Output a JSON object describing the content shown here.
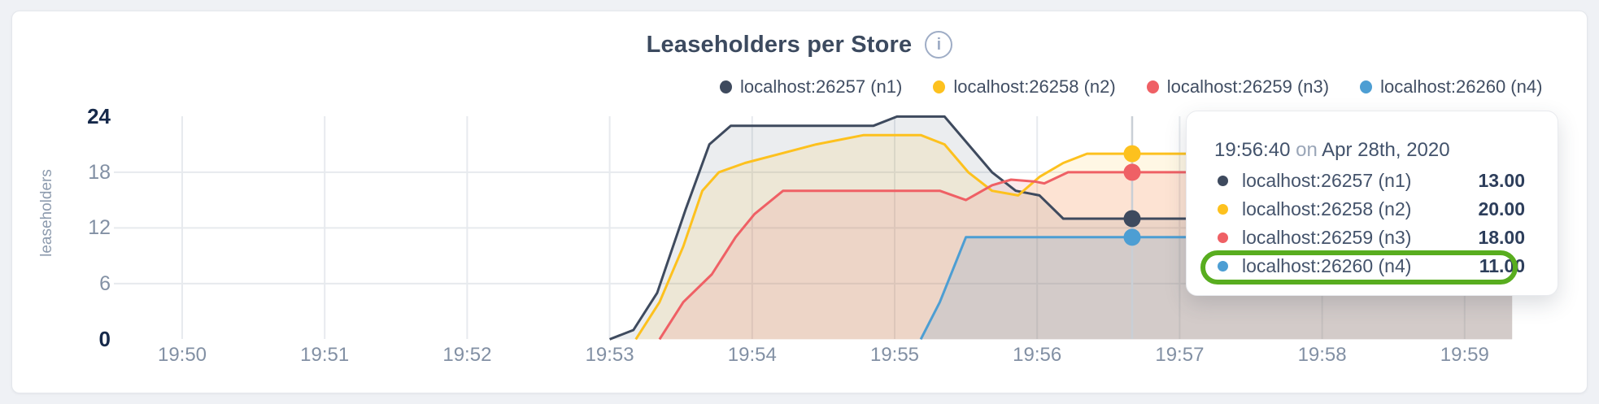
{
  "header": {
    "title": "Leaseholders per Store",
    "info_icon": "i"
  },
  "colors": {
    "n1": "#3e4a5e",
    "n2": "#fdc11e",
    "n3": "#ef6065",
    "n4": "#4d9ed3",
    "grid": "#e7eaee",
    "hover_line": "#c9cfd6",
    "highlight_green": "#58ad1f"
  },
  "legend": {
    "items": [
      {
        "label": "localhost:26257 (n1)",
        "color": "#3e4a5e"
      },
      {
        "label": "localhost:26258 (n2)",
        "color": "#fdc11e"
      },
      {
        "label": "localhost:26259 (n3)",
        "color": "#ef6065"
      },
      {
        "label": "localhost:26260 (n4)",
        "color": "#4d9ed3"
      }
    ]
  },
  "chart_data": {
    "type": "area",
    "title": "Leaseholders per Store",
    "ylabel": "leaseholders",
    "ylim": [
      0,
      24
    ],
    "grid": true,
    "legend_position": "top",
    "x_unit": "seconds after 19:50:00 on Apr 28th, 2020",
    "xticks": [
      {
        "t": 0,
        "label": "19:50"
      },
      {
        "t": 60,
        "label": "19:51"
      },
      {
        "t": 120,
        "label": "19:52"
      },
      {
        "t": 180,
        "label": "19:53"
      },
      {
        "t": 240,
        "label": "19:54"
      },
      {
        "t": 300,
        "label": "19:55"
      },
      {
        "t": 360,
        "label": "19:56"
      },
      {
        "t": 420,
        "label": "19:57"
      },
      {
        "t": 480,
        "label": "19:58"
      },
      {
        "t": 540,
        "label": "19:59"
      }
    ],
    "yticks": [
      {
        "value": 24,
        "emph": true
      },
      {
        "value": 18,
        "emph": false
      },
      {
        "value": 12,
        "emph": false
      },
      {
        "value": 6,
        "emph": false
      },
      {
        "value": 0,
        "emph": true
      }
    ],
    "series": [
      {
        "name": "localhost:26257 (n1)",
        "color": "#3e4a5e",
        "fill_opacity": 0.1,
        "points": [
          [
            180,
            0
          ],
          [
            190,
            1
          ],
          [
            200,
            5
          ],
          [
            212,
            14
          ],
          [
            222,
            21
          ],
          [
            231,
            23
          ],
          [
            291,
            23
          ],
          [
            301,
            24
          ],
          [
            321,
            24
          ],
          [
            331,
            21
          ],
          [
            341,
            18
          ],
          [
            351,
            16
          ],
          [
            361,
            15.5
          ],
          [
            371,
            13
          ],
          [
            560,
            13
          ]
        ]
      },
      {
        "name": "localhost:26258 (n2)",
        "color": "#fdc11e",
        "fill_opacity": 0.12,
        "points": [
          [
            191,
            0
          ],
          [
            201,
            4
          ],
          [
            211,
            10
          ],
          [
            219,
            16
          ],
          [
            226,
            18
          ],
          [
            237,
            19
          ],
          [
            252,
            20
          ],
          [
            267,
            21
          ],
          [
            287,
            22
          ],
          [
            311,
            22
          ],
          [
            321,
            21
          ],
          [
            331,
            18
          ],
          [
            341,
            16
          ],
          [
            352,
            15.5
          ],
          [
            361,
            17.5
          ],
          [
            371,
            19
          ],
          [
            381,
            20
          ],
          [
            560,
            20
          ]
        ]
      },
      {
        "name": "localhost:26259 (n3)",
        "color": "#ef6065",
        "fill_opacity": 0.13,
        "points": [
          [
            201,
            0
          ],
          [
            211,
            4
          ],
          [
            223,
            7
          ],
          [
            233,
            11
          ],
          [
            241,
            13.5
          ],
          [
            253,
            16
          ],
          [
            319,
            16
          ],
          [
            330,
            15
          ],
          [
            341,
            16.6
          ],
          [
            349,
            17.2
          ],
          [
            359,
            17
          ],
          [
            363,
            16.8
          ],
          [
            373,
            18
          ],
          [
            560,
            18
          ]
        ]
      },
      {
        "name": "localhost:26260 (n4)",
        "color": "#4d9ed3",
        "fill_opacity": 0.16,
        "points": [
          [
            311,
            0
          ],
          [
            319,
            4
          ],
          [
            330,
            11
          ],
          [
            560,
            11
          ]
        ]
      }
    ],
    "hover": {
      "t": 400,
      "values": [
        13,
        20,
        18,
        11
      ]
    }
  },
  "tooltip": {
    "time": "19:56:40",
    "on_word": "on",
    "date": "Apr 28th, 2020",
    "rows": [
      {
        "label": "localhost:26257 (n1)",
        "value": "13.00",
        "color": "#3e4a5e",
        "highlighted": false
      },
      {
        "label": "localhost:26258 (n2)",
        "value": "20.00",
        "color": "#fdc11e",
        "highlighted": false
      },
      {
        "label": "localhost:26259 (n3)",
        "value": "18.00",
        "color": "#ef6065",
        "highlighted": false
      },
      {
        "label": "localhost:26260 (n4)",
        "value": "11.00",
        "color": "#4d9ed3",
        "highlighted": true
      }
    ]
  }
}
